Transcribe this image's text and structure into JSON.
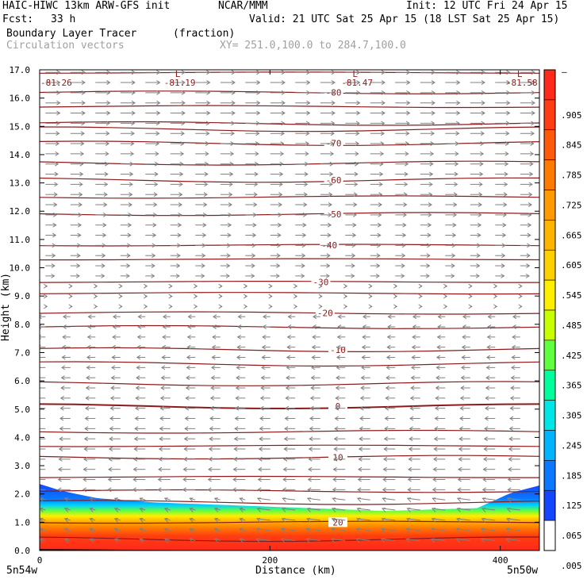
{
  "header": {
    "model_line": "HAIC-HIWC 13km ARW-GFS init",
    "org": "NCAR/MMM",
    "init": "Init: 12 UTC Fri 24 Apr 15",
    "fcst_label": "Fcst:",
    "fcst_value": "33 h",
    "valid": "Valid: 21 UTC Sat 25 Apr 15 (18 LST Sat 25 Apr 15)",
    "field": "Boundary Layer Tracer",
    "units": "(fraction)",
    "vectors": "Circulation vectors",
    "xy": "XY= 251.0,100.0 to 284.7,100.0"
  },
  "chart_data": {
    "type": "heatmap",
    "title": "Boundary Layer Tracer",
    "units": "(fraction)",
    "xlabel": "Distance (km)",
    "ylabel": "Height (km)",
    "xlim": [
      0,
      434
    ],
    "ylim": [
      0.0,
      17.0
    ],
    "x_ticks": [
      "0",
      "200",
      "400"
    ],
    "y_ticks": [
      "0.0",
      "1.0",
      "2.0",
      "3.0",
      "4.0",
      "5.0",
      "6.0",
      "7.0",
      "8.0",
      "9.0",
      "10.0",
      "11.0",
      "12.0",
      "13.0",
      "14.0",
      "15.0",
      "16.0",
      "17.0"
    ],
    "x_endpoints": {
      "left": "5n54w",
      "right": "5n50w"
    },
    "colorbar": {
      "top_label": "–",
      "labels": [
        ".905",
        ".845",
        ".785",
        ".725",
        ".665",
        ".605",
        ".545",
        ".485",
        ".425",
        ".365",
        ".305",
        ".245",
        ".185",
        ".125",
        ".065",
        ".005"
      ],
      "colors": [
        "#ff2a1a",
        "#ff3d12",
        "#ff5a0a",
        "#ff7a00",
        "#ff9a00",
        "#ffb400",
        "#ffd000",
        "#ffee00",
        "#c8ff00",
        "#60ff40",
        "#00ff9c",
        "#00e6e6",
        "#00b4ff",
        "#0a78ff",
        "#1446ff",
        "#ffffff"
      ]
    },
    "tracer_top_km": [
      [
        0,
        2.35
      ],
      [
        20,
        2.1
      ],
      [
        50,
        1.85
      ],
      [
        100,
        1.7
      ],
      [
        200,
        1.55
      ],
      [
        300,
        1.4
      ],
      [
        380,
        1.5
      ],
      [
        410,
        2.05
      ],
      [
        434,
        2.3
      ]
    ],
    "temperature_contours": [
      {
        "label": "-80",
        "height_km": 16.2
      },
      {
        "label": "-70",
        "height_km": 14.4
      },
      {
        "label": "-60",
        "height_km": 13.1
      },
      {
        "label": "-50",
        "height_km": 11.9
      },
      {
        "label": "-40",
        "height_km": 10.8
      },
      {
        "label": "-30",
        "height_km": 9.5
      },
      {
        "label": "-20",
        "height_km": 8.4
      },
      {
        "label": "-10",
        "height_km": 7.1
      },
      {
        "label": "0",
        "height_km": 5.1
      },
      {
        "label": "10",
        "height_km": 3.3
      },
      {
        "label": "20",
        "height_km": 1.0
      }
    ],
    "unlabeled_contour_heights_km": [
      16.9,
      15.7,
      15.1,
      14.9,
      13.7,
      12.5,
      10.3,
      9.1,
      7.9,
      6.6,
      5.9,
      4.2,
      3.7,
      2.6,
      2.1,
      1.7,
      0.4
    ],
    "minima": [
      {
        "marker": "",
        "label": "-81.26",
        "x_km": 0
      },
      {
        "marker": "L",
        "label": "-81.19",
        "x_km": 108
      },
      {
        "marker": "L",
        "label": "-81.47",
        "x_km": 262
      },
      {
        "marker": "L",
        "label": "-81.58",
        "x_km": 405
      }
    ],
    "vectors": {
      "upper_direction": "east",
      "lower_direction": "west",
      "reversal_height_km": 9.0
    }
  }
}
